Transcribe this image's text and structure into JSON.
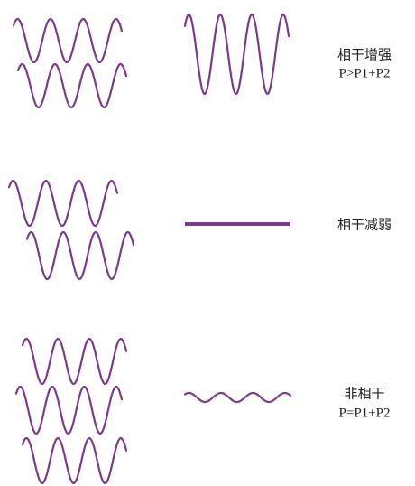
{
  "rows": [
    {
      "label": "相干增强",
      "formula": "P>P1+P2"
    },
    {
      "label": "相干减弱"
    },
    {
      "label": "非相干",
      "formula": "P=P1+P2"
    }
  ]
}
